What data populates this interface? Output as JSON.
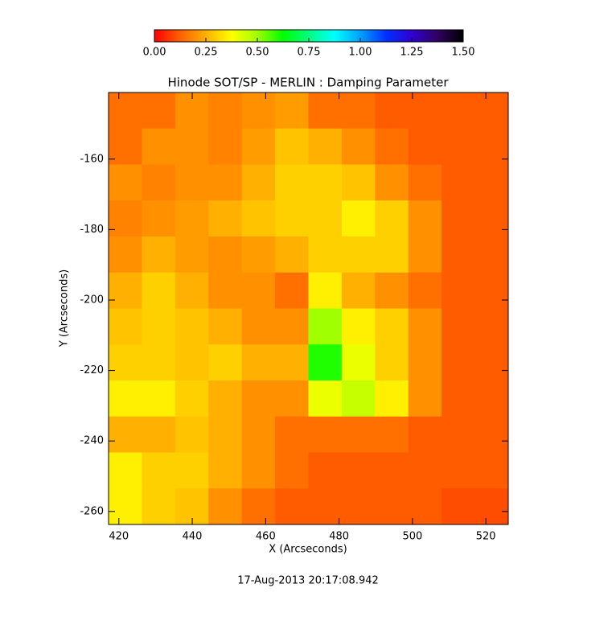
{
  "chart_data": {
    "type": "heatmap",
    "title": "Hinode SOT/SP - MERLIN : Damping Parameter",
    "xlabel": "X (Arcseconds)",
    "ylabel": "Y (Arcseconds)",
    "date": "17-Aug-2013 20:17:08.942",
    "xlim": [
      417.2,
      526.1
    ],
    "ylim": [
      -263.7,
      -141.1
    ],
    "xticks": [
      420,
      440,
      460,
      480,
      500,
      520
    ],
    "yticks": [
      -160,
      -180,
      -200,
      -220,
      -240,
      -260
    ],
    "zlim": [
      0,
      1.5
    ],
    "zticks": [
      {
        "value": 0,
        "label": "0.00"
      },
      {
        "value": 0.25,
        "label": "0.25"
      },
      {
        "value": 0.5,
        "label": "0.50"
      },
      {
        "value": 0.75,
        "label": "0.75"
      },
      {
        "value": 1,
        "label": "1.00"
      },
      {
        "value": 1.25,
        "label": "1.25"
      },
      {
        "value": 1.5,
        "label": "1.50"
      }
    ],
    "colormap": [
      "#ff0000",
      "#ff6000",
      "#ffb000",
      "#ffff00",
      "#a0ff00",
      "#00ff00",
      "#00ff80",
      "#00ffff",
      "#00a0ff",
      "#0030ff",
      "#3000d0",
      "#300060",
      "#000000"
    ],
    "z": [
      [
        0.15,
        0.15,
        0.2,
        0.18,
        0.2,
        0.22,
        0.15,
        0.15,
        0.12,
        0.12,
        0.12,
        0.12
      ],
      [
        0.15,
        0.2,
        0.2,
        0.18,
        0.22,
        0.28,
        0.25,
        0.2,
        0.15,
        0.12,
        0.12,
        0.12
      ],
      [
        0.2,
        0.18,
        0.2,
        0.2,
        0.25,
        0.3,
        0.3,
        0.28,
        0.2,
        0.15,
        0.12,
        0.12
      ],
      [
        0.18,
        0.2,
        0.22,
        0.25,
        0.28,
        0.3,
        0.3,
        0.35,
        0.3,
        0.2,
        0.12,
        0.12
      ],
      [
        0.2,
        0.25,
        0.22,
        0.2,
        0.22,
        0.25,
        0.3,
        0.3,
        0.3,
        0.2,
        0.12,
        0.12
      ],
      [
        0.25,
        0.3,
        0.25,
        0.2,
        0.2,
        0.15,
        0.35,
        0.25,
        0.2,
        0.15,
        0.12,
        0.12
      ],
      [
        0.28,
        0.3,
        0.28,
        0.25,
        0.2,
        0.2,
        0.5,
        0.35,
        0.3,
        0.2,
        0.12,
        0.12
      ],
      [
        0.3,
        0.3,
        0.28,
        0.3,
        0.25,
        0.25,
        0.6,
        0.4,
        0.3,
        0.2,
        0.12,
        0.12
      ],
      [
        0.35,
        0.35,
        0.3,
        0.25,
        0.2,
        0.2,
        0.4,
        0.45,
        0.35,
        0.2,
        0.12,
        0.12
      ],
      [
        0.25,
        0.25,
        0.28,
        0.25,
        0.2,
        0.15,
        0.15,
        0.15,
        0.15,
        0.12,
        0.12,
        0.12
      ],
      [
        0.35,
        0.3,
        0.3,
        0.25,
        0.2,
        0.15,
        0.12,
        0.12,
        0.12,
        0.12,
        0.12,
        0.12
      ],
      [
        0.35,
        0.3,
        0.28,
        0.2,
        0.15,
        0.12,
        0.12,
        0.12,
        0.12,
        0.12,
        0.1,
        0.1
      ]
    ]
  }
}
